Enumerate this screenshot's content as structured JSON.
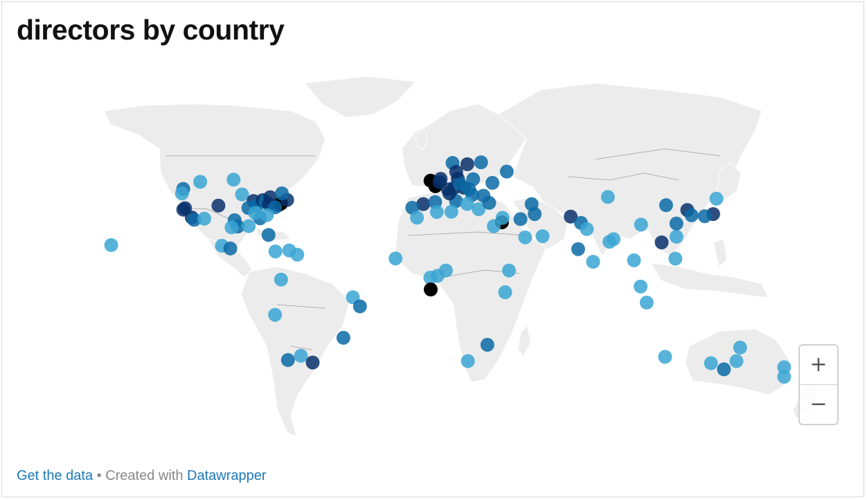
{
  "title": "directors by country",
  "footer": {
    "get_data": "Get the data",
    "separator": " • Created with ",
    "datawrapper": "Datawrapper"
  },
  "zoom": {
    "plus": "+",
    "minus": "−"
  },
  "colors": {
    "land": "#ececec",
    "border": "#9a9a9a",
    "low": "#3aa6d3",
    "mid": "#0b6aa6",
    "high": "#08306b",
    "max": "#000000"
  },
  "map_data": {
    "type": "symbol-map",
    "symbol_color_levels": [
      "low",
      "mid",
      "high",
      "max"
    ],
    "points": [
      {
        "lon": -158,
        "lat": 21,
        "level": 0
      },
      {
        "lon": -122.4,
        "lat": 47.6,
        "level": 1
      },
      {
        "lon": -123,
        "lat": 45.5,
        "level": 0
      },
      {
        "lon": -114,
        "lat": 51,
        "level": 0
      },
      {
        "lon": -122.4,
        "lat": 37.8,
        "level": 2
      },
      {
        "lon": -121.5,
        "lat": 38.5,
        "level": 2
      },
      {
        "lon": -118.2,
        "lat": 34.1,
        "level": 2
      },
      {
        "lon": -117,
        "lat": 33,
        "level": 1
      },
      {
        "lon": -112,
        "lat": 33.5,
        "level": 0
      },
      {
        "lon": -105,
        "lat": 39.7,
        "level": 2
      },
      {
        "lon": -97,
        "lat": 32.8,
        "level": 1
      },
      {
        "lon": -95.4,
        "lat": 29.8,
        "level": 1
      },
      {
        "lon": -98.5,
        "lat": 29.4,
        "level": 0
      },
      {
        "lon": -90,
        "lat": 30,
        "level": 0
      },
      {
        "lon": -93.3,
        "lat": 45,
        "level": 0
      },
      {
        "lon": -87.6,
        "lat": 41.9,
        "level": 2
      },
      {
        "lon": -90.2,
        "lat": 38.6,
        "level": 1
      },
      {
        "lon": -86,
        "lat": 39.8,
        "level": 1
      },
      {
        "lon": -84.4,
        "lat": 33.7,
        "level": 1
      },
      {
        "lon": -86.8,
        "lat": 36.2,
        "level": 0
      },
      {
        "lon": -83,
        "lat": 42.3,
        "level": 2
      },
      {
        "lon": -81.7,
        "lat": 41.5,
        "level": 1
      },
      {
        "lon": -80,
        "lat": 40.4,
        "level": 2
      },
      {
        "lon": -79.4,
        "lat": 43.7,
        "level": 2
      },
      {
        "lon": -75.2,
        "lat": 39.9,
        "level": 2
      },
      {
        "lon": -74,
        "lat": 40.7,
        "level": 3
      },
      {
        "lon": -71,
        "lat": 42.4,
        "level": 2
      },
      {
        "lon": -73.6,
        "lat": 45.5,
        "level": 1
      },
      {
        "lon": -77,
        "lat": 38.9,
        "level": 1
      },
      {
        "lon": -80.2,
        "lat": 25.8,
        "level": 1
      },
      {
        "lon": -97.5,
        "lat": 52,
        "level": 0
      },
      {
        "lon": -81,
        "lat": 35.2,
        "level": 0
      },
      {
        "lon": -103.3,
        "lat": 20.7,
        "level": 0
      },
      {
        "lon": -99.1,
        "lat": 19.4,
        "level": 1
      },
      {
        "lon": -76.8,
        "lat": 18,
        "level": 0
      },
      {
        "lon": -70,
        "lat": 18.5,
        "level": 0
      },
      {
        "lon": -66,
        "lat": 16.5,
        "level": 0
      },
      {
        "lon": -74,
        "lat": 4.7,
        "level": 0
      },
      {
        "lon": -77,
        "lat": -12,
        "level": 0
      },
      {
        "lon": -38.5,
        "lat": -3.7,
        "level": 0
      },
      {
        "lon": -35,
        "lat": -8,
        "level": 1
      },
      {
        "lon": -43.2,
        "lat": -22.9,
        "level": 1
      },
      {
        "lon": -64.2,
        "lat": -31.4,
        "level": 0
      },
      {
        "lon": -70.6,
        "lat": -33.4,
        "level": 1
      },
      {
        "lon": -58.4,
        "lat": -34.6,
        "level": 2
      },
      {
        "lon": -0.1,
        "lat": 51.5,
        "level": 3
      },
      {
        "lon": -3.7,
        "lat": 40.4,
        "level": 2
      },
      {
        "lon": 2.2,
        "lat": 41.4,
        "level": 1
      },
      {
        "lon": -9.1,
        "lat": 38.7,
        "level": 1
      },
      {
        "lon": 2.3,
        "lat": 48.9,
        "level": 3
      },
      {
        "lon": 4.9,
        "lat": 52.4,
        "level": 2
      },
      {
        "lon": 4.4,
        "lat": 50.8,
        "level": 2
      },
      {
        "lon": 13.4,
        "lat": 52.5,
        "level": 2
      },
      {
        "lon": 11.6,
        "lat": 48.1,
        "level": 2
      },
      {
        "lon": 8.5,
        "lat": 47.4,
        "level": 2
      },
      {
        "lon": 12.5,
        "lat": 41.9,
        "level": 1
      },
      {
        "lon": 9.2,
        "lat": 45.5,
        "level": 2
      },
      {
        "lon": 16.4,
        "lat": 48.2,
        "level": 2
      },
      {
        "lon": 19,
        "lat": 47.5,
        "level": 1
      },
      {
        "lon": 21,
        "lat": 52.2,
        "level": 1
      },
      {
        "lon": 14.4,
        "lat": 50.1,
        "level": 1
      },
      {
        "lon": 18.1,
        "lat": 59.3,
        "level": 2
      },
      {
        "lon": 10.8,
        "lat": 59.9,
        "level": 1
      },
      {
        "lon": 12.6,
        "lat": 55.7,
        "level": 2
      },
      {
        "lon": 24.9,
        "lat": 60.2,
        "level": 1
      },
      {
        "lon": 37.6,
        "lat": 55.8,
        "level": 1
      },
      {
        "lon": 30.5,
        "lat": 50.5,
        "level": 1
      },
      {
        "lon": 26.1,
        "lat": 44.4,
        "level": 1
      },
      {
        "lon": 20.5,
        "lat": 44.8,
        "level": 1
      },
      {
        "lon": 23.7,
        "lat": 38,
        "level": 0
      },
      {
        "lon": 28.9,
        "lat": 41,
        "level": 1
      },
      {
        "lon": 18,
        "lat": 40.5,
        "level": 0
      },
      {
        "lon": 3,
        "lat": 36.7,
        "level": 0
      },
      {
        "lon": 10.2,
        "lat": 36.8,
        "level": 0
      },
      {
        "lon": -6.8,
        "lat": 34,
        "level": 0
      },
      {
        "lon": 49.9,
        "lat": 40.4,
        "level": 1
      },
      {
        "lon": 35.2,
        "lat": 31.8,
        "level": 3
      },
      {
        "lon": 35.5,
        "lat": 33.9,
        "level": 0
      },
      {
        "lon": 31.2,
        "lat": 30,
        "level": 0
      },
      {
        "lon": 44.4,
        "lat": 33.3,
        "level": 1
      },
      {
        "lon": 51.4,
        "lat": 35.7,
        "level": 1
      },
      {
        "lon": 46.7,
        "lat": 24.7,
        "level": 0
      },
      {
        "lon": 55.3,
        "lat": 25.2,
        "level": 0
      },
      {
        "lon": 69.2,
        "lat": 34.5,
        "level": 2
      },
      {
        "lon": 74.3,
        "lat": 31.5,
        "level": 1
      },
      {
        "lon": 77.2,
        "lat": 28.6,
        "level": 0
      },
      {
        "lon": 72.9,
        "lat": 19.1,
        "level": 1
      },
      {
        "lon": 80.3,
        "lat": 13.1,
        "level": 0
      },
      {
        "lon": 88.4,
        "lat": 22.6,
        "level": 0
      },
      {
        "lon": 90.4,
        "lat": 23.8,
        "level": 0
      },
      {
        "lon": 100.5,
        "lat": 13.8,
        "level": 0
      },
      {
        "lon": 103.8,
        "lat": 1.4,
        "level": 0
      },
      {
        "lon": 106.8,
        "lat": -6.2,
        "level": 0
      },
      {
        "lon": 121,
        "lat": 14.6,
        "level": 0
      },
      {
        "lon": 114.2,
        "lat": 22.3,
        "level": 2
      },
      {
        "lon": 121.5,
        "lat": 25,
        "level": 0
      },
      {
        "lon": 121.5,
        "lat": 31.2,
        "level": 1
      },
      {
        "lon": 116.4,
        "lat": 39.9,
        "level": 1
      },
      {
        "lon": 104,
        "lat": 30.7,
        "level": 0
      },
      {
        "lon": 126.9,
        "lat": 37.6,
        "level": 2
      },
      {
        "lon": 129,
        "lat": 35.1,
        "level": 1
      },
      {
        "lon": 139.7,
        "lat": 35.7,
        "level": 2
      },
      {
        "lon": 135.5,
        "lat": 34.7,
        "level": 1
      },
      {
        "lon": 141.3,
        "lat": 43,
        "level": 0
      },
      {
        "lon": 87.6,
        "lat": 43.8,
        "level": 0
      },
      {
        "lon": 3.4,
        "lat": 6.5,
        "level": 0
      },
      {
        "lon": -17.4,
        "lat": 14.7,
        "level": 0
      },
      {
        "lon": -0.2,
        "lat": 5.6,
        "level": 0
      },
      {
        "lon": 7.5,
        "lat": 9,
        "level": 0
      },
      {
        "lon": 36.8,
        "lat": -1.3,
        "level": 0
      },
      {
        "lon": 38.7,
        "lat": 9,
        "level": 0
      },
      {
        "lon": 0,
        "lat": 0,
        "level": 3
      },
      {
        "lon": 28,
        "lat": -26.2,
        "level": 1
      },
      {
        "lon": 18.4,
        "lat": -33.9,
        "level": 0
      },
      {
        "lon": 115.9,
        "lat": -31.9,
        "level": 0
      },
      {
        "lon": 151.2,
        "lat": -33.9,
        "level": 0
      },
      {
        "lon": 153,
        "lat": -27.5,
        "level": 0
      },
      {
        "lon": 145,
        "lat": -37.8,
        "level": 1
      },
      {
        "lon": 138.6,
        "lat": -34.9,
        "level": 0
      },
      {
        "lon": 174.8,
        "lat": -36.8,
        "level": 0
      },
      {
        "lon": 174.8,
        "lat": -41.3,
        "level": 0
      }
    ]
  }
}
